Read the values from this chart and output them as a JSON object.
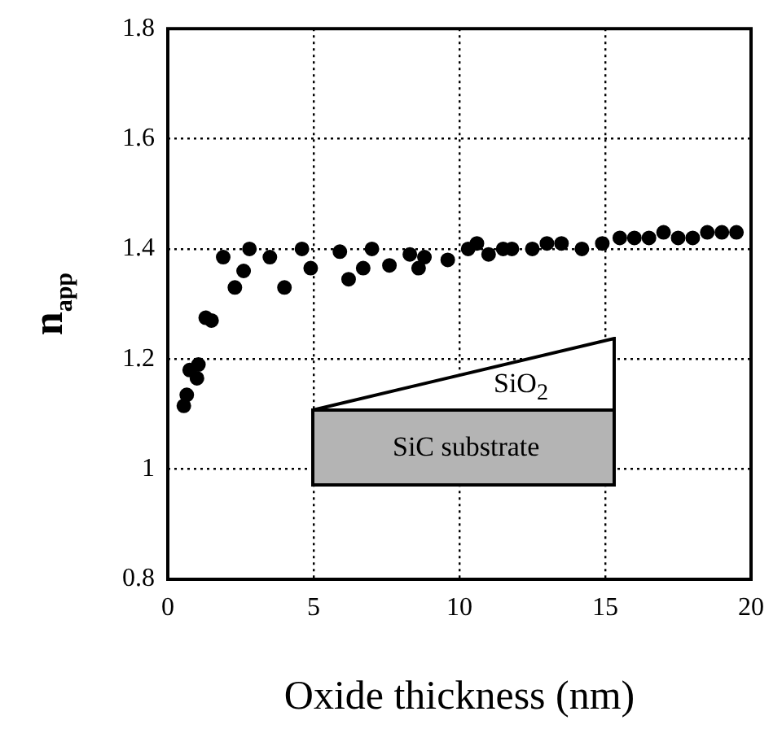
{
  "chart_data": {
    "type": "scatter",
    "xlabel": "Oxide thickness (nm)",
    "ylabel": "n$_{app}$",
    "xlim": [
      0,
      20
    ],
    "xticks": [
      0,
      5,
      10,
      15,
      20
    ],
    "ylim": [
      0.8,
      1.8
    ],
    "yticks": [
      0.8,
      1,
      1.2,
      1.4,
      1.6,
      1.8
    ],
    "grid": true,
    "marker": "circle",
    "annotations": [
      "SiO$_{2}$",
      "SiC substrate"
    ],
    "series": [
      {
        "color": "#000000",
        "x": [
          0.55,
          0.65,
          0.75,
          1.0,
          1.05,
          1.3,
          1.5,
          1.9,
          2.3,
          2.6,
          2.8,
          3.5,
          4.0,
          4.6,
          4.9,
          5.9,
          6.2,
          6.7,
          7.0,
          7.6,
          8.3,
          8.6,
          8.8,
          9.6,
          10.3,
          10.6,
          11.0,
          11.5,
          11.8,
          12.5,
          13.0,
          13.5,
          14.2,
          14.9,
          15.5,
          16.0,
          16.5,
          17.0,
          17.5,
          18.0,
          18.5,
          19.0,
          19.5
        ],
        "values": [
          1.115,
          1.135,
          1.18,
          1.165,
          1.19,
          1.275,
          1.27,
          1.385,
          1.33,
          1.36,
          1.4,
          1.385,
          1.33,
          1.4,
          1.365,
          1.395,
          1.345,
          1.365,
          1.4,
          1.37,
          1.39,
          1.365,
          1.385,
          1.38,
          1.4,
          1.41,
          1.39,
          1.4,
          1.4,
          1.4,
          1.41,
          1.41,
          1.4,
          1.41,
          1.42,
          1.42,
          1.42,
          1.43,
          1.42,
          1.42,
          1.43,
          1.43,
          1.43
        ]
      }
    ]
  }
}
